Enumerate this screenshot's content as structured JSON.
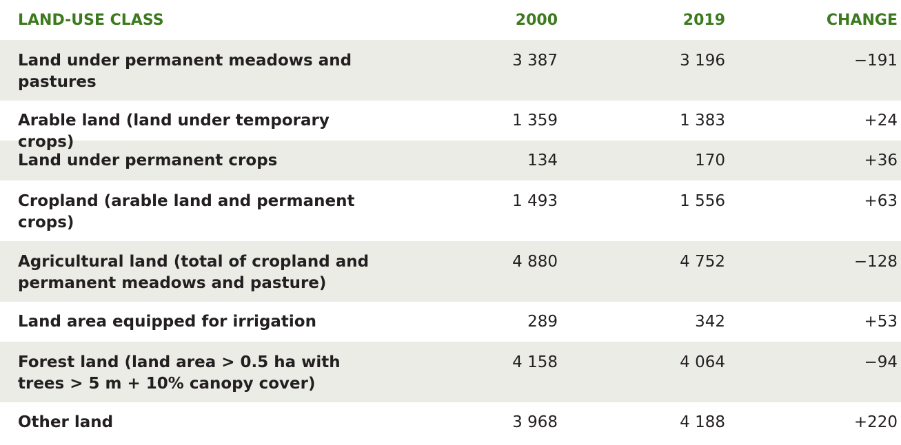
{
  "header": {
    "land_use_class": "LAND-USE CLASS",
    "y2000": "2000",
    "y2019": "2019",
    "change": "CHANGE"
  },
  "rows": [
    {
      "label": "Land under permanent meadows and pastures",
      "y2000": "3 387",
      "y2019": "3 196",
      "change": "−191"
    },
    {
      "label": "Arable land (land under temporary crops)",
      "y2000": "1 359",
      "y2019": "1 383",
      "change": "+24"
    },
    {
      "label": "Land under permanent crops",
      "y2000": "134",
      "y2019": "170",
      "change": "+36"
    },
    {
      "label": "Cropland (arable land and permanent crops)",
      "y2000": "1 493",
      "y2019": "1 556",
      "change": "+63"
    },
    {
      "label": "Agricultural land (total of cropland and permanent meadows and pasture)",
      "y2000": "4 880",
      "y2019": "4 752",
      "change": "−128"
    },
    {
      "label": "Land area equipped for irrigation",
      "y2000": "289",
      "y2019": "342",
      "change": "+53"
    },
    {
      "label": "Forest land (land area > 0.5 ha with trees > 5 m + 10% canopy cover)",
      "y2000": "4 158",
      "y2019": "4 064",
      "change": "−94"
    },
    {
      "label": "Other land",
      "y2000": "3 968",
      "y2019": "4 188",
      "change": "+220"
    }
  ]
}
